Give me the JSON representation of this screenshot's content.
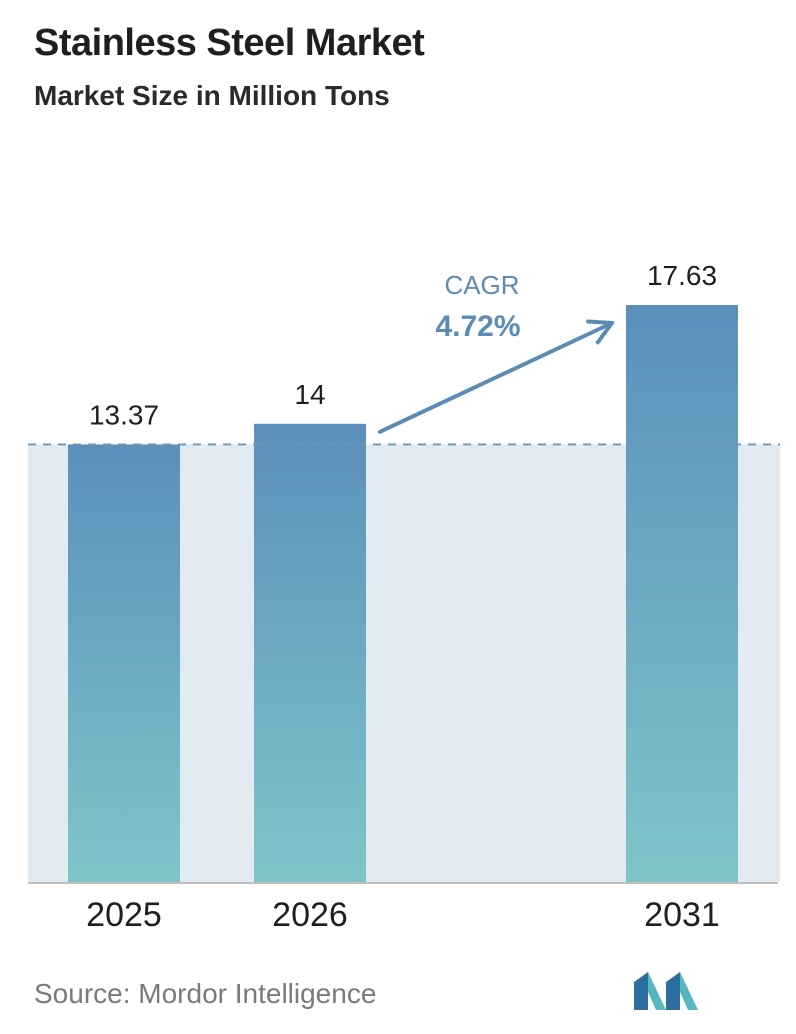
{
  "header": {
    "title": "Stainless Steel Market",
    "subtitle": "Market Size in Million Tons"
  },
  "footer": {
    "source": "Source:  Mordor Intelligence"
  },
  "cagr": {
    "label": "CAGR",
    "value": "4.72%"
  },
  "colors": {
    "bar_top": "#5b8fbb",
    "bar_bottom": "#7ec5c9",
    "band": "#e2eaf2",
    "dashed_line": "#6e96b4",
    "arrow": "#5c8bb3",
    "cagr_text": "#5c8bb3",
    "axis": "#bfbfbf"
  },
  "chart_data": {
    "type": "bar",
    "title": "Stainless Steel Market",
    "subtitle": "Market Size in Million Tons",
    "categories": [
      "2025",
      "2026",
      "2031"
    ],
    "values": [
      13.37,
      14,
      17.63
    ],
    "data_labels": [
      "13.37",
      "14",
      "17.63"
    ],
    "ylim": [
      0,
      17.63
    ],
    "grid": false,
    "baseline_reference": 13.37
  }
}
